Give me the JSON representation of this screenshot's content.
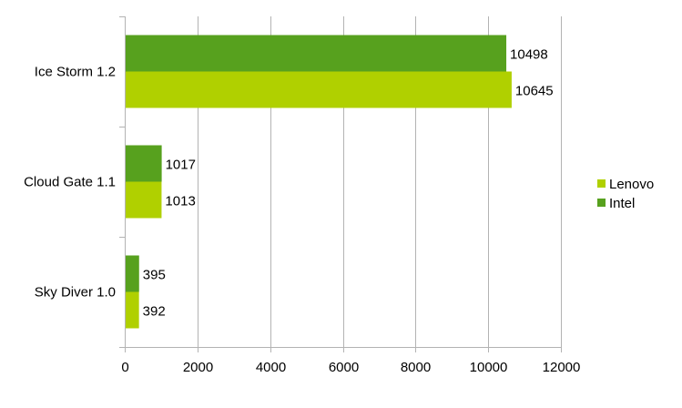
{
  "chart_data": {
    "type": "bar",
    "orientation": "horizontal",
    "title": "",
    "xlabel": "",
    "ylabel": "",
    "categories": [
      "Ice Storm 1.2",
      "Cloud Gate 1.1",
      "Sky Diver 1.0"
    ],
    "series": [
      {
        "name": "Intel",
        "color": "#57a11e",
        "values": [
          10498,
          1017,
          395
        ]
      },
      {
        "name": "Lenovo",
        "color": "#b0d000",
        "values": [
          10645,
          1013,
          392
        ]
      }
    ],
    "xlim": [
      0,
      12000
    ],
    "x_ticks": [
      0,
      2000,
      4000,
      6000,
      8000,
      10000,
      12000
    ],
    "x_tick_labels": [
      "0",
      "2000",
      "4000",
      "6000",
      "8000",
      "10000",
      "12000"
    ],
    "grid": "vertical",
    "legend": {
      "position": "right",
      "entries": [
        {
          "name": "Lenovo",
          "color": "#b0d000"
        },
        {
          "name": "Intel",
          "color": "#57a11e"
        }
      ]
    },
    "data_labels": true
  }
}
